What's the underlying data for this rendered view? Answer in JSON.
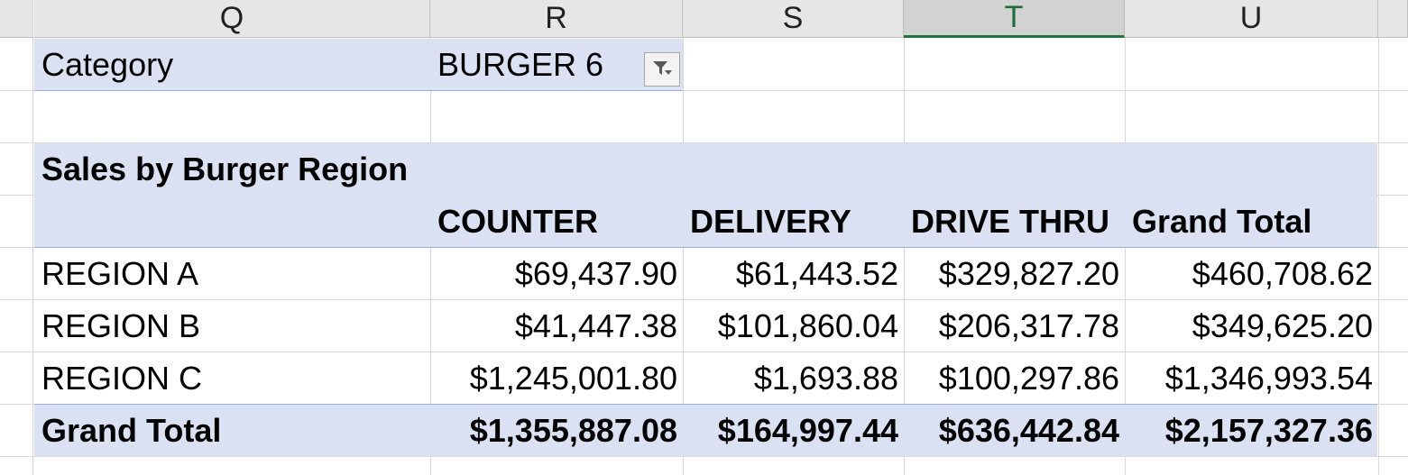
{
  "columns": [
    "Q",
    "R",
    "S",
    "T",
    "U"
  ],
  "selected_column": "T",
  "filter": {
    "label": "Category",
    "value": "BURGER 6"
  },
  "pivot": {
    "title": "Sales by Burger Region",
    "headers": [
      "COUNTER",
      "DELIVERY",
      "DRIVE THRU",
      "Grand Total"
    ],
    "rows": [
      {
        "label": "REGION A",
        "values": [
          "$69,437.90",
          "$61,443.52",
          "$329,827.20",
          "$460,708.62"
        ]
      },
      {
        "label": "REGION B",
        "values": [
          "$41,447.38",
          "$101,860.04",
          "$206,317.78",
          "$349,625.20"
        ]
      },
      {
        "label": "REGION C",
        "values": [
          "$1,245,001.80",
          "$1,693.88",
          "$100,297.86",
          "$1,346,993.54"
        ]
      }
    ],
    "grand_total": {
      "label": "Grand Total",
      "values": [
        "$1,355,887.08",
        "$164,997.44",
        "$636,442.84",
        "$2,157,327.36"
      ]
    }
  },
  "colors": {
    "pivot_band": "#d9e1f2",
    "selected_column_accent": "#217346"
  },
  "icons": {
    "filter": "filter-funnel-icon"
  }
}
